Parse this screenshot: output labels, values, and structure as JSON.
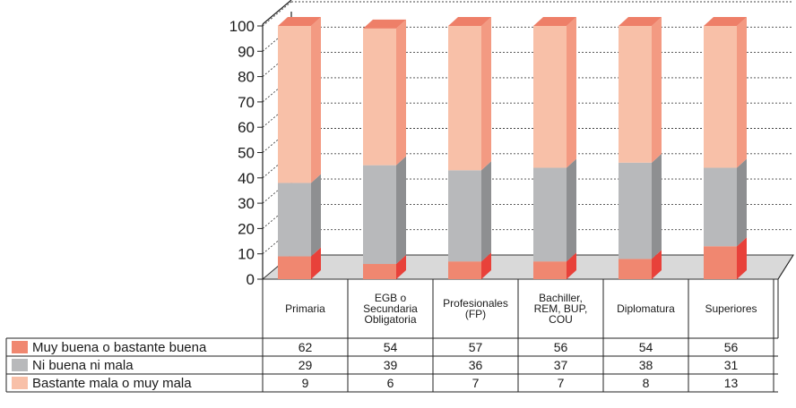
{
  "colors": {
    "bottom_front": "#f08770",
    "bottom_side": "#e8413a",
    "middle_front": "#b8b9bb",
    "middle_side": "#8e8f91",
    "top_front": "#f8c0a8",
    "top_side": "#f39a82",
    "top_cap": "#ee7f68",
    "floor": "#d9d9d9"
  },
  "chart_data": {
    "type": "bar",
    "stacked": true,
    "three_d": true,
    "yticks": [
      "0",
      "10",
      "20",
      "30",
      "40",
      "50",
      "60",
      "70",
      "80",
      "90",
      "100"
    ],
    "ylim": [
      0,
      100
    ],
    "grid": true,
    "categories": [
      [
        "Primaria"
      ],
      [
        "EGB o",
        "Secundaria",
        "Obligatoria"
      ],
      [
        "Profesionales",
        "(FP)"
      ],
      [
        "Bachiller,",
        "REM, BUP,",
        "COU"
      ],
      [
        "Diplomatura"
      ],
      [
        "Superiores"
      ]
    ],
    "series": [
      {
        "name": "Muy buena o bastante buena",
        "values": [
          62,
          54,
          57,
          56,
          54,
          56
        ]
      },
      {
        "name": "Ni buena ni mala",
        "values": [
          29,
          39,
          36,
          37,
          38,
          31
        ]
      },
      {
        "name": "Bastante mala o muy mala",
        "values": [
          9,
          6,
          7,
          7,
          8,
          13
        ]
      }
    ]
  }
}
